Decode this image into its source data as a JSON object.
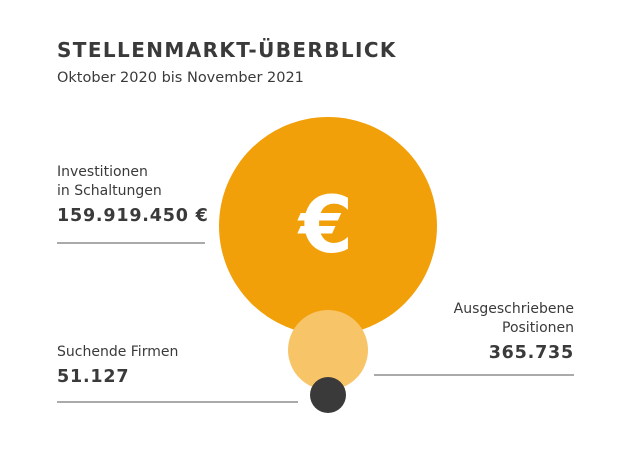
{
  "header": {
    "title": "STELLENMARKT-ÜBERBLICK",
    "subtitle": "Oktober 2020 bis November 2021"
  },
  "metrics": {
    "investments": {
      "label_line1": "Investitionen",
      "label_line2": "in Schaltungen",
      "value": "159.919.450 €",
      "value_number": 159919450,
      "icon": "euro-icon",
      "color": "#f2a00a"
    },
    "positions": {
      "label_line1": "Ausgeschriebene",
      "label_line2": "Positionen",
      "value": "365.735",
      "value_number": 365735,
      "color": "#f7c468"
    },
    "firms": {
      "label_line1": "Suchende Firmen",
      "value": "51.127",
      "value_number": 51127,
      "color": "#3a3a3a"
    }
  },
  "euro_symbol": "€"
}
